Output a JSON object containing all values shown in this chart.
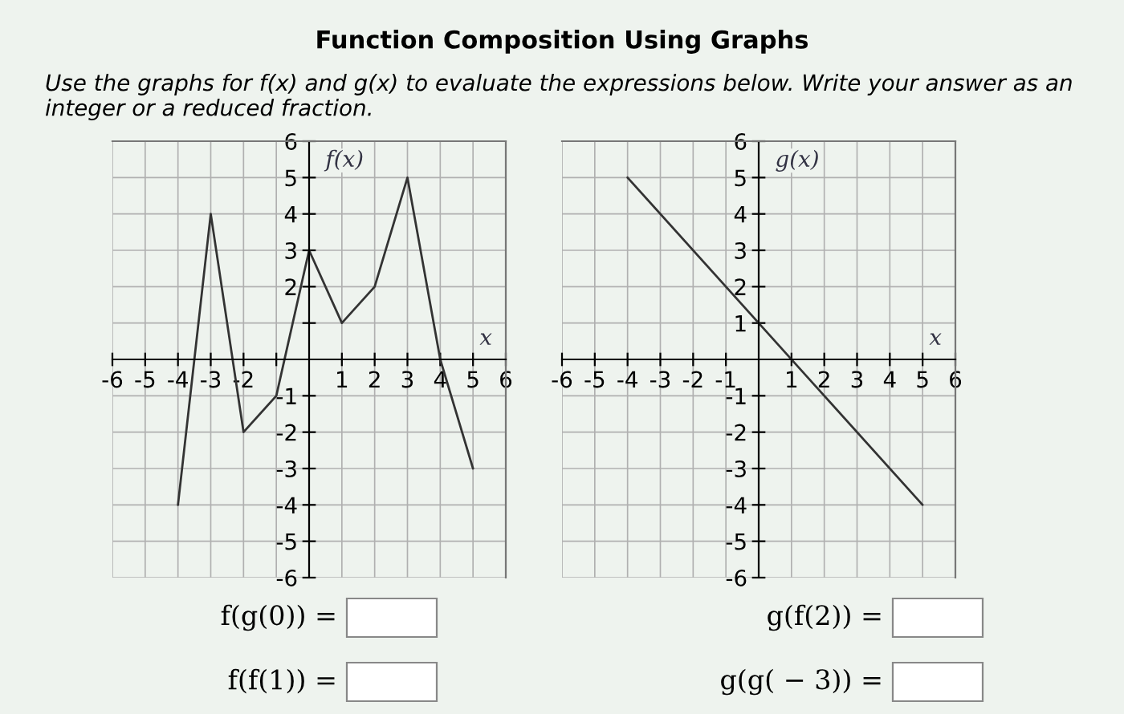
{
  "chart_data": [
    {
      "type": "line",
      "title": "Function Composition Using Graphs",
      "subtitle": "Use the graphs for f(x) and g(x) to evaluate the expressions below. Write your answer as an integer or a reduced fraction.",
      "xlabel": "x",
      "ylabel": "f(x)",
      "x": [
        -4,
        -3,
        -2,
        -1,
        0,
        1,
        2,
        3,
        4,
        5
      ],
      "series": [
        {
          "color": "#333333",
          "values": [
            -4,
            4,
            -2,
            -1,
            3,
            1,
            2,
            5,
            0,
            -3
          ]
        }
      ],
      "xlim": [
        -6,
        6
      ],
      "ylim": [
        -6,
        6
      ],
      "xticks": [
        -6,
        -5,
        -4,
        -3,
        -2,
        {
          "value": -1,
          "label": null
        },
        1,
        2,
        3,
        4,
        5,
        6
      ],
      "yticks": [
        -6,
        -5,
        -4,
        -3,
        -2,
        -1,
        {
          "value": 1,
          "label": null
        },
        2,
        3,
        4,
        5,
        6
      ],
      "grid": true,
      "marker": "none",
      "line_style": "solid",
      "annotations": [
        "f(g(0)) =",
        "f(f(1)) ="
      ]
    },
    {
      "type": "line",
      "xlabel": "x",
      "ylabel": "g(x)",
      "x": [
        -4,
        5
      ],
      "series": [
        {
          "color": "#333333",
          "values": [
            5,
            -4
          ]
        }
      ],
      "xlim": [
        -6,
        6
      ],
      "ylim": [
        -6,
        6
      ],
      "xticks": [
        -6,
        -5,
        -4,
        -3,
        -2,
        -1,
        1,
        2,
        3,
        4,
        5,
        6
      ],
      "yticks": [
        -6,
        -5,
        -4,
        -3,
        -2,
        -1,
        1,
        2,
        3,
        4,
        5,
        6
      ],
      "grid": true,
      "marker": "none",
      "line_style": "solid",
      "annotations": [
        "g(f(2)) =",
        "g(g( − 3)) ="
      ]
    }
  ]
}
